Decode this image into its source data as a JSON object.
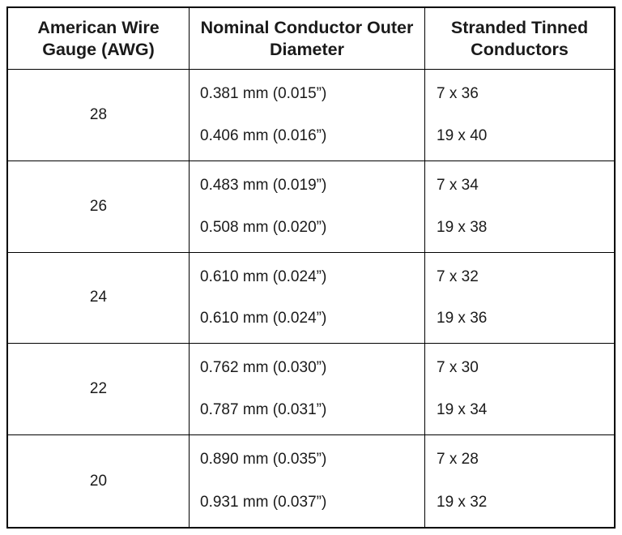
{
  "headers": {
    "awg": "American Wire Gauge (AWG)",
    "diameter": "Nominal Conductor Outer Diameter",
    "stranded": "Stranded Tinned Conductors"
  },
  "rows": [
    {
      "awg": "28",
      "diameters": [
        "0.381 mm (0.015”)",
        "0.406 mm (0.016”)"
      ],
      "stranded": [
        "7 x 36",
        "19 x 40"
      ]
    },
    {
      "awg": "26",
      "diameters": [
        "0.483 mm (0.019”)",
        "0.508 mm (0.020”)"
      ],
      "stranded": [
        "7 x 34",
        "19 x 38"
      ]
    },
    {
      "awg": "24",
      "diameters": [
        "0.610 mm (0.024”)",
        "0.610 mm (0.024”)"
      ],
      "stranded": [
        "7 x 32",
        "19 x 36"
      ]
    },
    {
      "awg": "22",
      "diameters": [
        "0.762 mm (0.030”)",
        "0.787 mm (0.031”)"
      ],
      "stranded": [
        "7 x 30",
        "19 x 34"
      ]
    },
    {
      "awg": "20",
      "diameters": [
        "0.890 mm (0.035”)",
        "0.931 mm (0.037”)"
      ],
      "stranded": [
        "7 x 28",
        "19 x 32"
      ]
    }
  ]
}
